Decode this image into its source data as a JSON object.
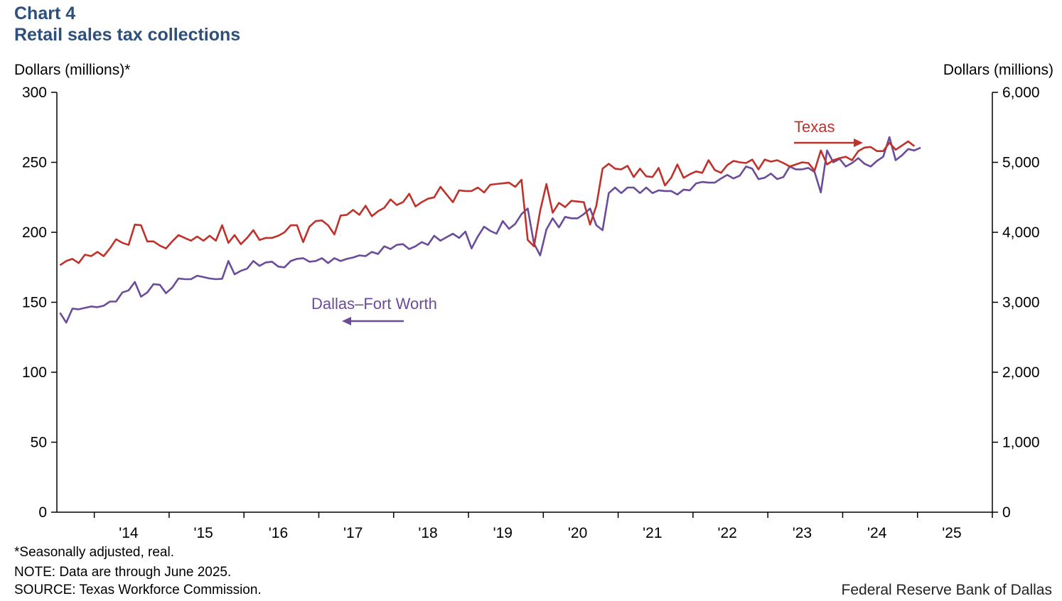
{
  "header": {
    "chart_number": "Chart 4",
    "title": "Retail sales tax collections"
  },
  "axes": {
    "left_unit": "Dollars (millions)*",
    "right_unit": "Dollars (millions)"
  },
  "footer": {
    "note1": "*Seasonally adjusted,  real.",
    "note2": "NOTE: Data are through  June 2025.",
    "note3": "SOURCE: Texas Workforce Commission.",
    "credit": "Federal Reserve Bank of Dallas"
  },
  "colors": {
    "texas": "#c0312b",
    "dfw": "#6b4c9a",
    "axis": "#000000",
    "title": "#2c4f7c"
  },
  "chart_data": {
    "type": "line",
    "title": "Retail sales tax collections",
    "start": "2013-07",
    "end": "2025-06",
    "frequency": "monthly",
    "x_tick_labels": [
      "'14",
      "'15",
      "'16",
      "'17",
      "'18",
      "'19",
      "'20",
      "'21",
      "'22",
      "'23",
      "'24",
      "'25"
    ],
    "left_axis": {
      "label": "Dollars (millions)*",
      "min": 0,
      "max": 300,
      "ticks": [
        0,
        50,
        100,
        150,
        200,
        250,
        300
      ],
      "tick_labels": [
        "0",
        "50",
        "100",
        "150",
        "200",
        "250",
        "300"
      ]
    },
    "right_axis": {
      "label": "Dollars (millions)",
      "min": 0,
      "max": 6000,
      "ticks": [
        0,
        1000,
        2000,
        3000,
        4000,
        5000,
        6000
      ],
      "tick_labels": [
        "0",
        "1,000",
        "2,000",
        "3,000",
        "4,000",
        "5,000",
        "6,000"
      ]
    },
    "series": [
      {
        "name": "Dallas–Fort Worth",
        "axis": "left",
        "arrow": "left",
        "values": [
          142.5,
          135.5,
          145.5,
          145,
          146,
          147,
          146.5,
          147.5,
          150.5,
          150.5,
          157,
          158.5,
          164.5,
          154,
          157,
          163,
          162.5,
          156.5,
          160.5,
          167,
          166.5,
          166.5,
          169,
          168,
          167,
          166.5,
          166.8,
          179.5,
          170,
          172.5,
          174,
          179.5,
          176,
          178.5,
          179,
          175.5,
          175,
          179.5,
          181,
          181.5,
          179,
          179.5,
          181.5,
          178,
          181.5,
          179.5,
          181,
          182,
          183.5,
          183,
          186,
          184.5,
          190,
          188,
          191,
          191.5,
          188,
          190,
          193,
          191,
          197.5,
          194,
          196.5,
          199,
          196,
          200.5,
          188.5,
          197,
          204,
          201,
          199,
          208,
          202.5,
          206,
          213,
          217,
          192,
          183.5,
          202,
          210,
          203.5,
          211,
          210,
          210,
          213,
          217,
          205,
          201.5,
          228,
          232,
          228,
          232,
          232,
          228,
          232,
          228,
          230,
          229.5,
          229.5,
          227,
          230.5,
          230,
          235,
          236,
          235.5,
          235.5,
          238.5,
          241,
          238.5,
          240.5,
          247,
          245.5,
          238,
          239,
          242,
          238,
          239.5,
          247,
          245,
          245,
          246,
          243,
          228.5,
          258.5,
          250,
          252.5,
          247,
          249.5,
          253,
          249,
          247,
          251,
          254,
          268,
          251.5,
          255,
          259.5,
          258.5,
          260.5
        ]
      },
      {
        "name": "Texas",
        "axis": "right",
        "arrow": "right",
        "values": [
          3530,
          3590,
          3620,
          3560,
          3680,
          3660,
          3720,
          3660,
          3770,
          3900,
          3850,
          3820,
          4110,
          4100,
          3870,
          3870,
          3810,
          3770,
          3870,
          3960,
          3920,
          3880,
          3940,
          3880,
          3950,
          3880,
          4100,
          3850,
          3960,
          3830,
          3920,
          4030,
          3890,
          3920,
          3920,
          3950,
          4000,
          4100,
          4100,
          3860,
          4080,
          4160,
          4170,
          4100,
          3970,
          4240,
          4250,
          4320,
          4250,
          4380,
          4230,
          4300,
          4350,
          4470,
          4390,
          4430,
          4550,
          4370,
          4430,
          4480,
          4500,
          4650,
          4540,
          4430,
          4600,
          4590,
          4590,
          4640,
          4570,
          4680,
          4690,
          4700,
          4710,
          4650,
          4750,
          3890,
          3800,
          4310,
          4690,
          4280,
          4420,
          4360,
          4450,
          4440,
          4430,
          4110,
          4380,
          4910,
          4980,
          4910,
          4900,
          4950,
          4790,
          4910,
          4800,
          4790,
          4920,
          4670,
          4780,
          4970,
          4780,
          4830,
          4870,
          4850,
          5030,
          4890,
          4850,
          4960,
          5020,
          5000,
          4990,
          5040,
          4900,
          5040,
          5010,
          5030,
          4990,
          4940,
          4970,
          5000,
          4990,
          4880,
          5170,
          4970,
          5030,
          5060,
          5080,
          5030,
          5160,
          5210,
          5220,
          5160,
          5160,
          5280,
          5180,
          5240,
          5300,
          5230
        ]
      }
    ]
  }
}
